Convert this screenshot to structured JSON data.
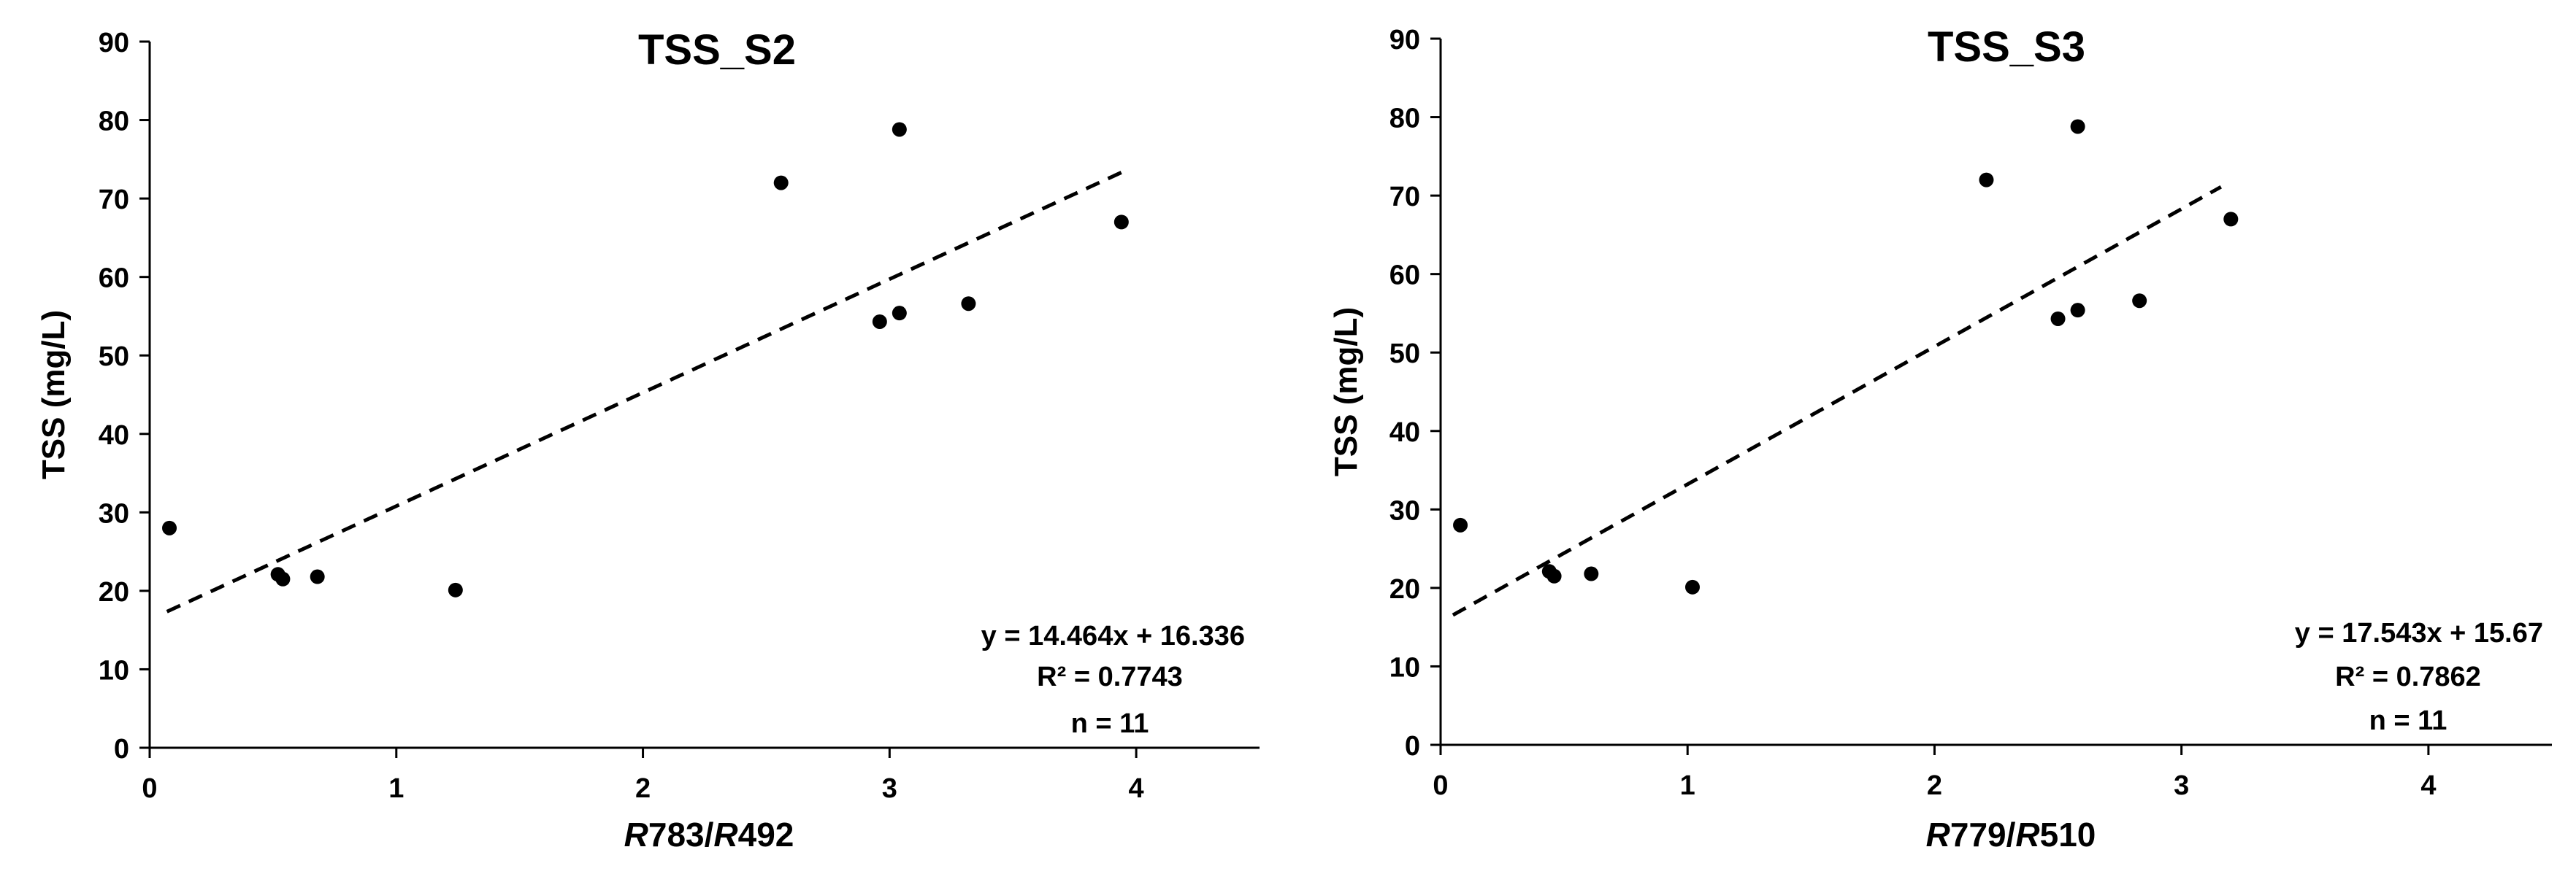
{
  "chart_data": [
    {
      "type": "scatter",
      "title": "TSS_S2",
      "xlabel_parts": [
        {
          "text": "R",
          "italic": true
        },
        {
          "text": "783/",
          "italic": false
        },
        {
          "text": "R",
          "italic": true
        },
        {
          "text": "492",
          "italic": false
        }
      ],
      "ylabel": "TSS (mg/L)",
      "xlim": [
        0,
        4.5
      ],
      "ylim": [
        0,
        90
      ],
      "xticks": [
        "0",
        "1",
        "2",
        "3",
        "4"
      ],
      "yticks": [
        "0",
        "10",
        "20",
        "30",
        "40",
        "50",
        "60",
        "70",
        "80",
        "90"
      ],
      "points": [
        {
          "x": 0.08,
          "y": 28.0
        },
        {
          "x": 0.52,
          "y": 22.1
        },
        {
          "x": 0.54,
          "y": 21.5
        },
        {
          "x": 0.68,
          "y": 21.8
        },
        {
          "x": 1.24,
          "y": 20.1
        },
        {
          "x": 2.56,
          "y": 72.0
        },
        {
          "x": 2.96,
          "y": 54.3
        },
        {
          "x": 3.04,
          "y": 55.4
        },
        {
          "x": 3.04,
          "y": 78.8
        },
        {
          "x": 3.32,
          "y": 56.6
        },
        {
          "x": 3.94,
          "y": 67.0
        }
      ],
      "trendline": {
        "slope": 14.464,
        "intercept": 16.336,
        "x_range": [
          0.07,
          3.96
        ],
        "style": "dashed"
      },
      "annotation": {
        "equation": "y = 14.464x + 16.336",
        "r2": "R² = 0.7743",
        "n": "n = 11"
      },
      "grid": false
    },
    {
      "type": "scatter",
      "title": "TSS_S3",
      "xlabel_parts": [
        {
          "text": "R",
          "italic": true
        },
        {
          "text": "779/",
          "italic": false
        },
        {
          "text": "R",
          "italic": true
        },
        {
          "text": "510",
          "italic": false
        }
      ],
      "ylabel": "TSS (mg/L)",
      "xlim": [
        0,
        4.5
      ],
      "ylim": [
        0,
        90
      ],
      "xticks": [
        "0",
        "1",
        "2",
        "3",
        "4"
      ],
      "yticks": [
        "0",
        "10",
        "20",
        "30",
        "40",
        "50",
        "60",
        "70",
        "80",
        "90"
      ],
      "points": [
        {
          "x": 0.08,
          "y": 28.0
        },
        {
          "x": 0.44,
          "y": 22.1
        },
        {
          "x": 0.46,
          "y": 21.5
        },
        {
          "x": 0.61,
          "y": 21.8
        },
        {
          "x": 1.02,
          "y": 20.1
        },
        {
          "x": 2.21,
          "y": 72.0
        },
        {
          "x": 2.5,
          "y": 54.3
        },
        {
          "x": 2.58,
          "y": 55.4
        },
        {
          "x": 2.58,
          "y": 78.8
        },
        {
          "x": 2.83,
          "y": 56.6
        },
        {
          "x": 3.2,
          "y": 67.0
        }
      ],
      "trendline": {
        "slope": 17.543,
        "intercept": 15.67,
        "x_range": [
          0.05,
          3.16
        ],
        "style": "dashed"
      },
      "annotation": {
        "equation": "y = 17.543x + 15.67",
        "r2": "R² = 0.7862",
        "n": "n = 11"
      },
      "grid": false
    }
  ],
  "colors": {
    "points": "#000000",
    "axis": "#000000",
    "text": "#000000",
    "background": "#ffffff"
  }
}
